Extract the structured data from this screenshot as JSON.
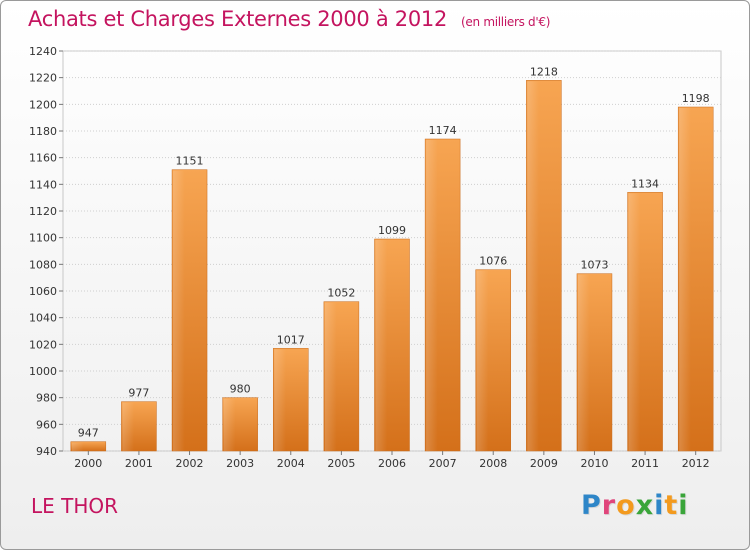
{
  "chart_data": {
    "type": "bar",
    "title": "Achats et Charges Externes 2000 à 2012",
    "unit": "(en milliers d'€)",
    "categories": [
      "2000",
      "2001",
      "2002",
      "2003",
      "2004",
      "2005",
      "2006",
      "2007",
      "2008",
      "2009",
      "2010",
      "2011",
      "2012"
    ],
    "values": [
      947,
      977,
      1151,
      980,
      1017,
      1052,
      1099,
      1174,
      1076,
      1218,
      1073,
      1134,
      1198
    ],
    "ylim": [
      940,
      1240
    ],
    "yticks": [
      940,
      960,
      980,
      1000,
      1020,
      1040,
      1060,
      1080,
      1100,
      1120,
      1140,
      1160,
      1180,
      1200,
      1220,
      1240
    ],
    "grid": true,
    "bar_color": "#f08a2c"
  },
  "footer": {
    "town": "LE THOR",
    "logo_letters": [
      {
        "ch": "P",
        "color": "#2e86c8"
      },
      {
        "ch": "r",
        "color": "#e0457b"
      },
      {
        "ch": "o",
        "color": "#f39a1e"
      },
      {
        "ch": "x",
        "color": "#3aa53a"
      },
      {
        "ch": "i",
        "color": "#2e86c8"
      },
      {
        "ch": "t",
        "color": "#f39a1e"
      },
      {
        "ch": "i",
        "color": "#3aa53a"
      }
    ]
  }
}
